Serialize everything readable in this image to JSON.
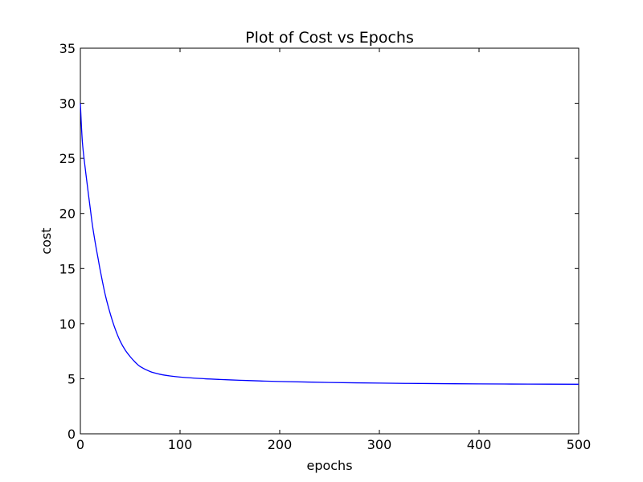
{
  "chart_data": {
    "type": "line",
    "title": "Plot of Cost vs Epochs",
    "xlabel": "epochs",
    "ylabel": "cost",
    "xlim": [
      0,
      500
    ],
    "ylim": [
      0,
      35
    ],
    "grid": false,
    "x_ticks": [
      0,
      100,
      200,
      300,
      400,
      500
    ],
    "x_tick_labels": [
      "0",
      "100",
      "200",
      "300",
      "400",
      "500"
    ],
    "y_ticks": [
      0,
      5,
      10,
      15,
      20,
      25,
      30,
      35
    ],
    "y_tick_labels": [
      "0",
      "5",
      "10",
      "15",
      "20",
      "25",
      "30",
      "35"
    ],
    "series": [
      {
        "color": "#0000ff",
        "x": [
          0,
          2,
          5,
          8,
          10,
          12,
          15,
          18,
          20,
          25,
          30,
          35,
          40,
          45,
          50,
          55,
          60,
          70,
          80,
          90,
          100,
          120,
          140,
          160,
          180,
          200,
          250,
          300,
          350,
          400,
          450,
          500
        ],
        "y": [
          30.0,
          26.5,
          24.0,
          21.8,
          20.4,
          19.0,
          17.3,
          15.8,
          14.8,
          12.6,
          10.9,
          9.5,
          8.4,
          7.6,
          7.0,
          6.5,
          6.1,
          5.65,
          5.4,
          5.25,
          5.15,
          5.02,
          4.93,
          4.86,
          4.8,
          4.75,
          4.66,
          4.6,
          4.56,
          4.53,
          4.51,
          4.5
        ]
      }
    ]
  }
}
